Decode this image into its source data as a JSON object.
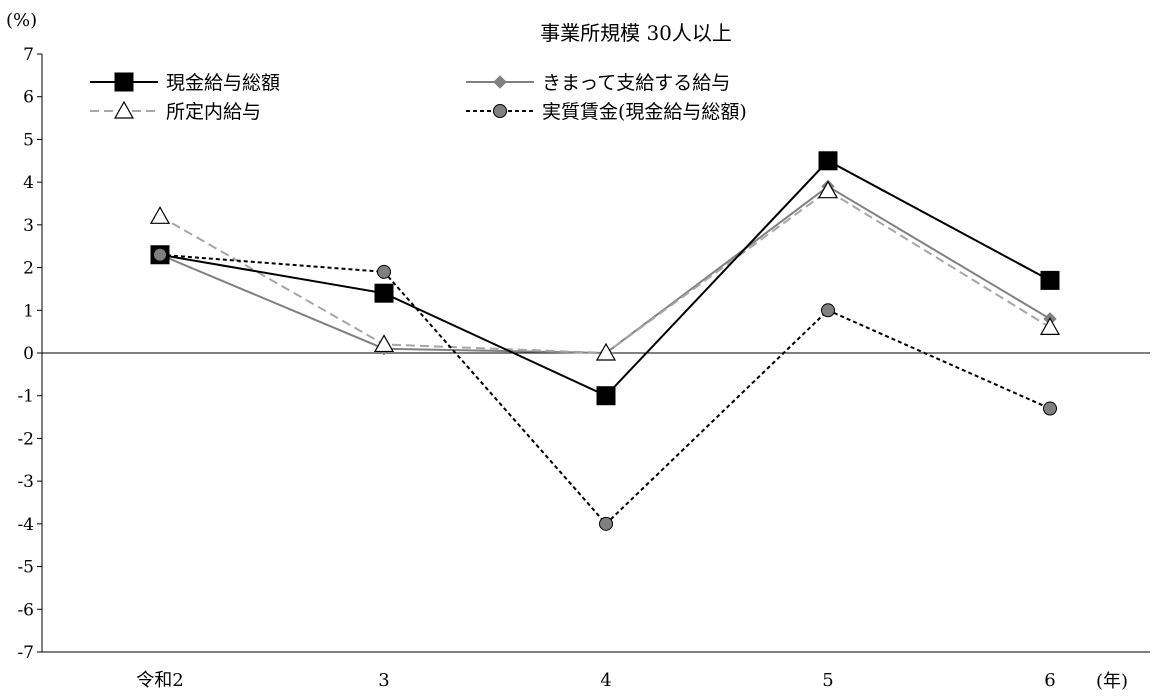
{
  "chart_data": {
    "type": "line",
    "title": "事業所規模 30人以上",
    "ylabel": "(%)",
    "xlabel": "(年)",
    "categories": [
      "令和2",
      "3",
      "4",
      "5",
      "6"
    ],
    "ylim": [
      -7,
      7
    ],
    "yticks": [
      "7",
      "6",
      "5",
      "4",
      "3",
      "2",
      "1",
      "0",
      "-1",
      "-2",
      "-3",
      "-4",
      "-5",
      "-6",
      "-7"
    ],
    "legend_position": "top-left",
    "series": [
      {
        "name": "現金給与総額",
        "values": [
          2.3,
          1.4,
          -1.0,
          4.5,
          1.7
        ],
        "color": "#000000",
        "marker": "square",
        "dash": "solid"
      },
      {
        "name": "きまって支給する給与",
        "values": [
          2.3,
          0.1,
          0.0,
          3.9,
          0.8
        ],
        "color": "#808080",
        "marker": "diamond",
        "dash": "solid"
      },
      {
        "name": "所定内給与",
        "values": [
          3.2,
          0.2,
          0.0,
          3.8,
          0.6
        ],
        "color": "#a6a6a6",
        "marker": "triangle",
        "dash": "dashed"
      },
      {
        "name": "実質賃金(現金給与総額)",
        "values": [
          2.3,
          1.9,
          -4.0,
          1.0,
          -1.3
        ],
        "color": "#000000",
        "marker": "circle",
        "dash": "dotted"
      }
    ]
  }
}
